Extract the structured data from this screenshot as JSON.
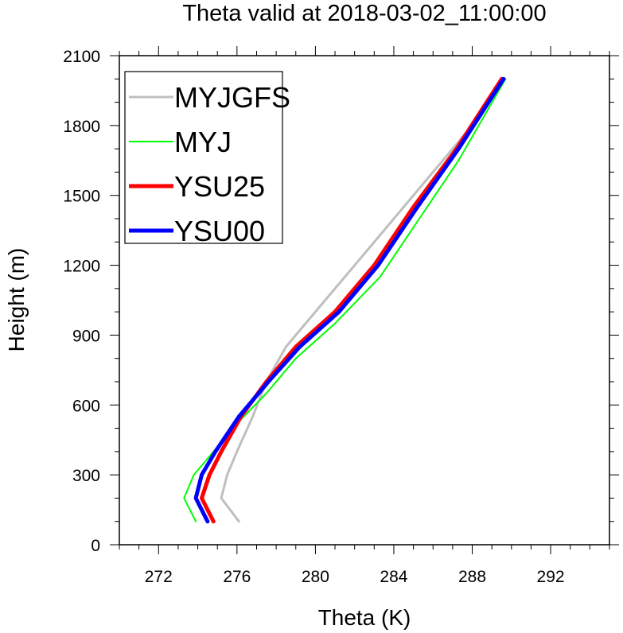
{
  "chart_data": {
    "type": "line",
    "title": "Theta valid at 2018-03-02_11:00:00",
    "xlabel": "Theta (K)",
    "ylabel": "Height (m)",
    "xlim": [
      270,
      295
    ],
    "ylim": [
      0,
      2100
    ],
    "xticks": [
      272,
      276,
      280,
      284,
      288,
      292
    ],
    "yticks": [
      0,
      300,
      600,
      900,
      1200,
      1500,
      1800,
      2100
    ],
    "legend_position": "top-left",
    "series": [
      {
        "name": "MYJGFS",
        "color": "#bfbfbf",
        "width": 3,
        "x": [
          276.1,
          275.2,
          275.5,
          276.0,
          276.8,
          277.5,
          278.5,
          280.0,
          282.0,
          284.0,
          286.0,
          288.0,
          289.6
        ],
        "y": [
          100,
          200,
          300,
          400,
          550,
          700,
          850,
          1000,
          1200,
          1400,
          1600,
          1800,
          2000
        ]
      },
      {
        "name": "MYJ",
        "color": "#00ff00",
        "width": 2,
        "x": [
          273.9,
          273.3,
          273.8,
          274.8,
          276.0,
          277.5,
          279.0,
          281.0,
          283.3,
          285.3,
          287.3,
          289.7
        ],
        "y": [
          100,
          200,
          300,
          400,
          520,
          650,
          800,
          950,
          1150,
          1400,
          1650,
          2000
        ]
      },
      {
        "name": "YSU25",
        "color": "#ff0000",
        "width": 5,
        "x": [
          274.8,
          274.2,
          274.6,
          275.2,
          276.2,
          277.5,
          279.0,
          281.0,
          283.0,
          285.0,
          287.2,
          289.5
        ],
        "y": [
          100,
          200,
          300,
          400,
          550,
          700,
          850,
          1000,
          1200,
          1450,
          1700,
          2000
        ]
      },
      {
        "name": "YSU00",
        "color": "#0000ff",
        "width": 5,
        "x": [
          274.5,
          273.9,
          274.2,
          274.9,
          276.1,
          277.6,
          279.2,
          281.2,
          283.2,
          285.2,
          287.3,
          289.6
        ],
        "y": [
          100,
          200,
          300,
          400,
          550,
          700,
          850,
          1000,
          1200,
          1450,
          1700,
          2000
        ]
      }
    ]
  }
}
